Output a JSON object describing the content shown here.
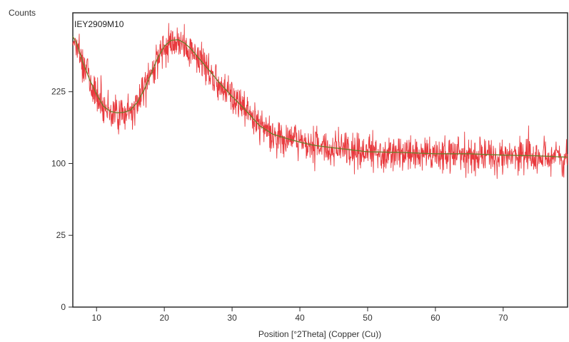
{
  "chart_data": {
    "type": "line",
    "title": "",
    "sample_label": "IEY2909M10",
    "ylabel": "Counts",
    "xlabel": "Position [°2Theta] (Copper (Cu))",
    "x_ticks": [
      10,
      20,
      30,
      40,
      50,
      60,
      70
    ],
    "y_ticks": [
      0,
      25,
      100,
      225
    ],
    "y_scale": "sqrt",
    "xlim": [
      6.5,
      79.5
    ],
    "ylim": [
      0,
      420
    ],
    "grid": false,
    "colors": {
      "observed": "#e8393d",
      "fit": "#6b7d2a",
      "frame": "#2b2b2b"
    },
    "series": [
      {
        "name": "",
        "kind": "observed",
        "noise": true,
        "x": [
          6.5,
          7,
          8,
          9,
          10,
          11,
          12,
          13,
          14,
          15,
          16,
          17,
          18,
          19,
          20,
          21,
          22,
          23,
          24,
          25,
          26,
          27,
          28,
          30,
          32,
          34,
          36,
          38,
          40,
          42,
          45,
          50,
          55,
          60,
          65,
          70,
          75,
          79.5
        ],
        "y": [
          355,
          340,
          290,
          250,
          220,
          196,
          186,
          183,
          184,
          188,
          203,
          228,
          262,
          300,
          330,
          345,
          347,
          338,
          322,
          302,
          283,
          265,
          246,
          215,
          188,
          160,
          145,
          138,
          132,
          127,
          123,
          117,
          116,
          114,
          114,
          112,
          111,
          109
        ]
      },
      {
        "name": "",
        "kind": "fit",
        "noise": false,
        "x": [
          6.5,
          7,
          8,
          9,
          10,
          11,
          12,
          13,
          14,
          15,
          16,
          17,
          18,
          19,
          20,
          21,
          22,
          23,
          24,
          25,
          26,
          27,
          28,
          30,
          32,
          34,
          36,
          38,
          40,
          42,
          45,
          50,
          55,
          60,
          65,
          70,
          75,
          79.5
        ],
        "y": [
          355,
          340,
          290,
          250,
          220,
          196,
          186,
          183,
          184,
          188,
          203,
          228,
          262,
          300,
          330,
          345,
          347,
          338,
          322,
          302,
          283,
          265,
          246,
          215,
          188,
          160,
          145,
          138,
          132,
          127,
          123,
          117,
          116,
          114,
          114,
          112,
          111,
          109
        ]
      }
    ]
  }
}
